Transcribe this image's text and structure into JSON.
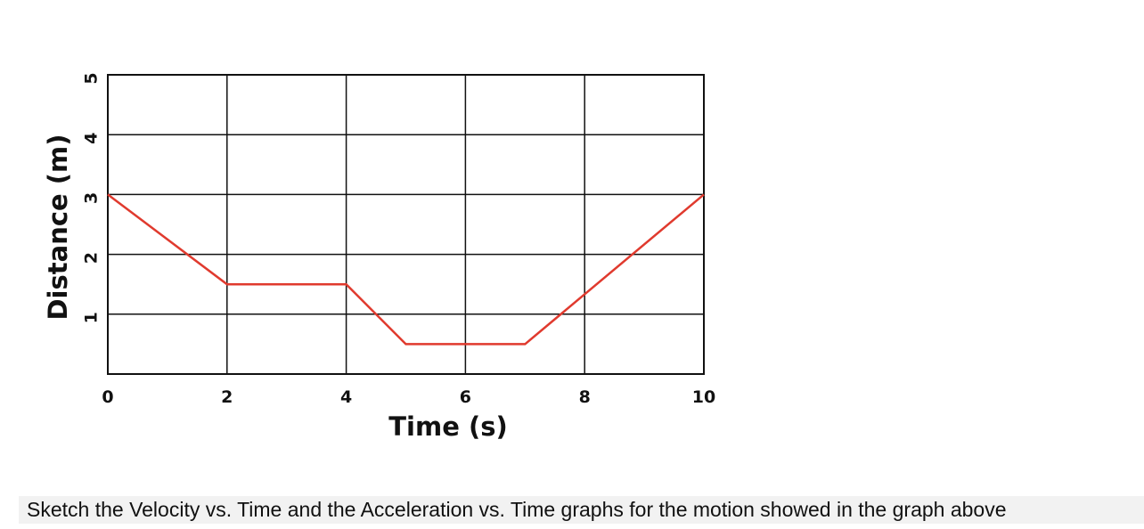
{
  "chart_data": {
    "type": "line",
    "xlabel": "Time (s)",
    "ylabel": "Distance (m)",
    "xlim": [
      0,
      10
    ],
    "ylim": [
      0,
      5
    ],
    "x_ticks": [
      "0",
      "2",
      "4",
      "6",
      "8",
      "10"
    ],
    "y_ticks": [
      "1",
      "2",
      "3",
      "4",
      "5"
    ],
    "grid": true,
    "series": [
      {
        "color": "#e03a2e",
        "x": [
          0,
          2,
          4,
          5,
          7,
          10
        ],
        "y": [
          3,
          1.5,
          1.5,
          0.5,
          0.5,
          3
        ]
      }
    ]
  },
  "caption": "Sketch the Velocity vs. Time and the Acceleration vs. Time graphs for the motion showed in the graph above"
}
